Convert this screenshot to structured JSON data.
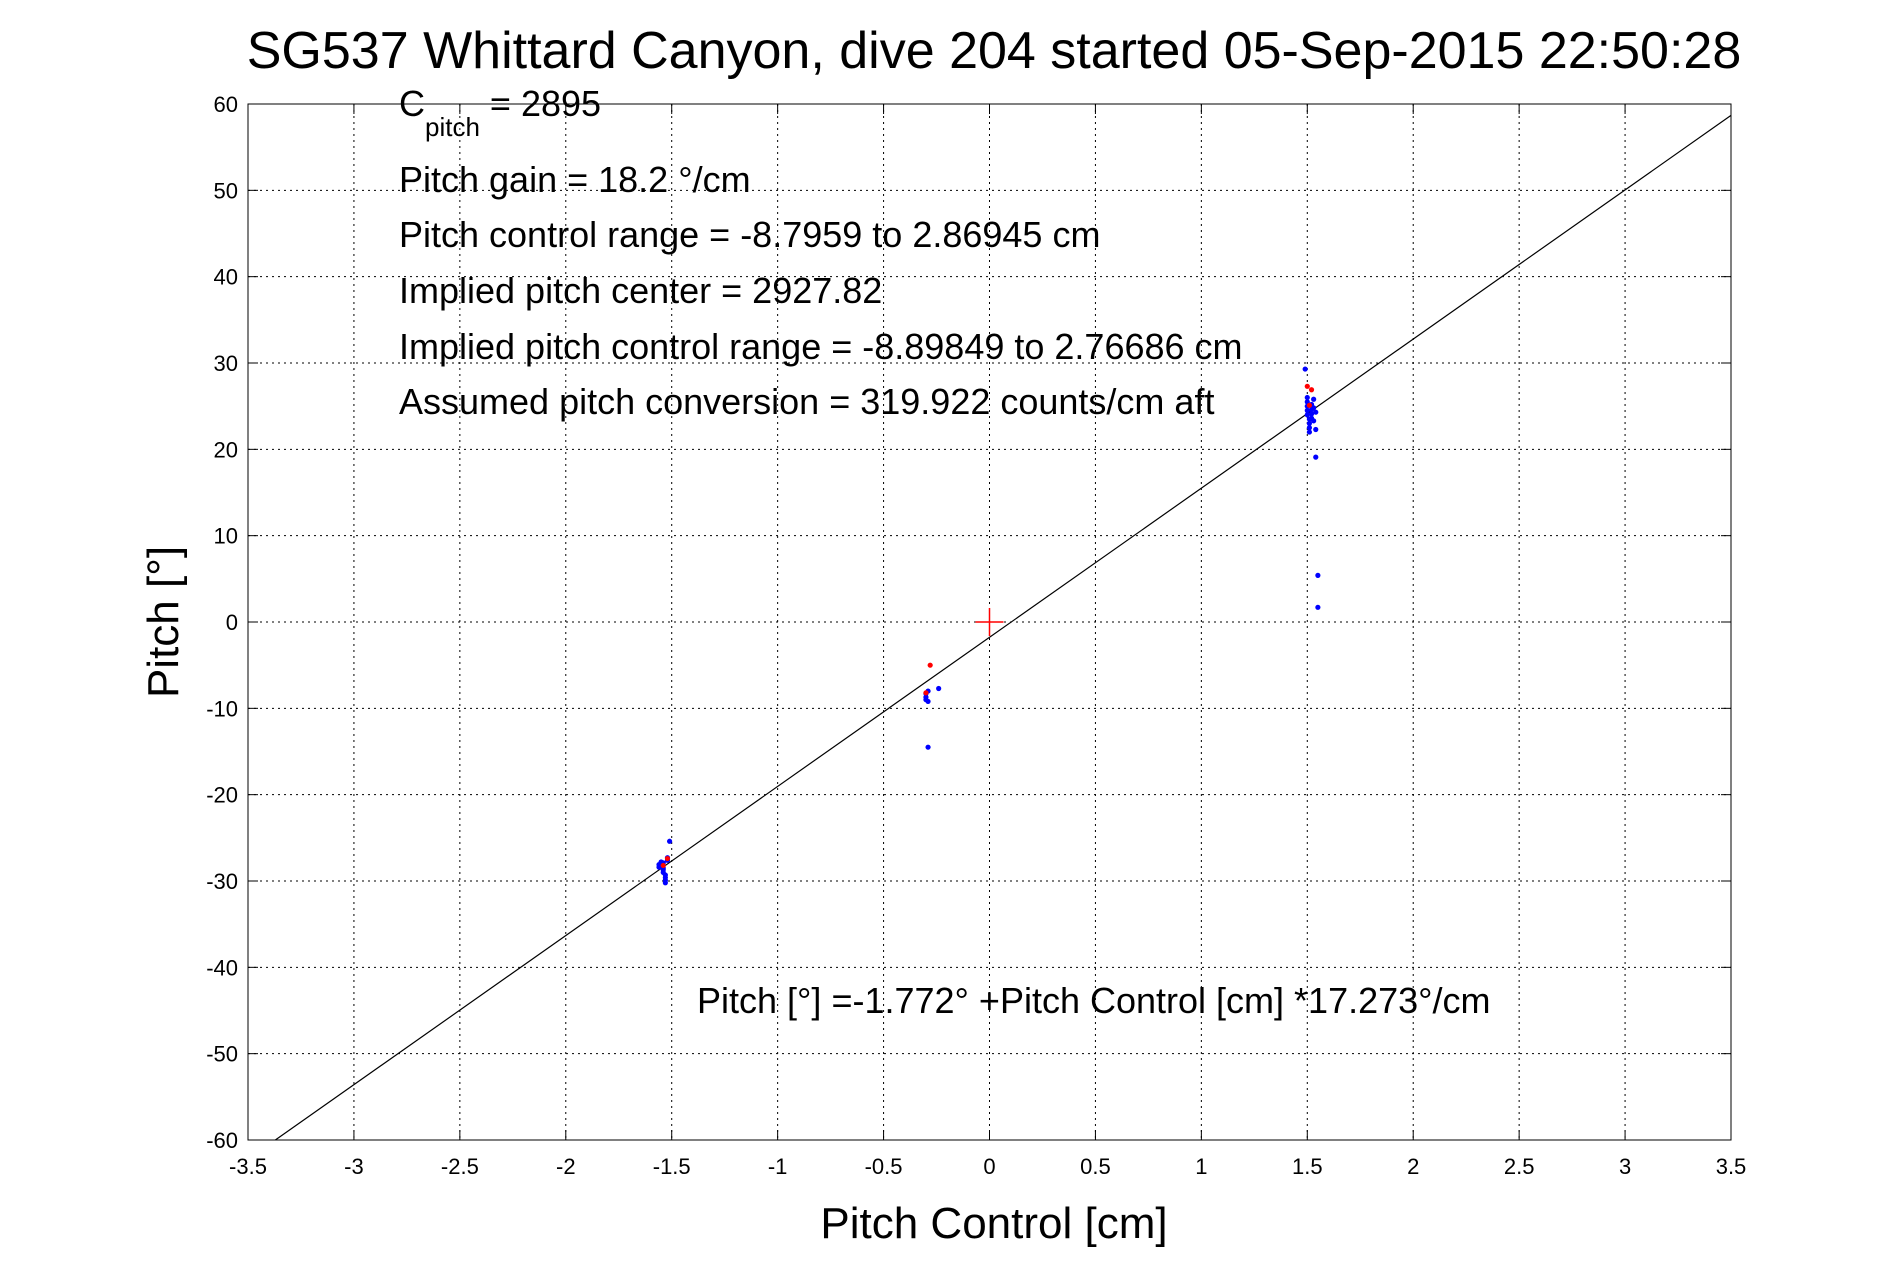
{
  "chart_data": {
    "type": "scatter",
    "title": "SG537 Whittard Canyon, dive 204 started 05-Sep-2015 22:50:28",
    "xlabel": "Pitch Control [cm]",
    "ylabel": "Pitch [°]",
    "xlim": [
      -3.5,
      3.5
    ],
    "ylim": [
      -60,
      60
    ],
    "xticks": [
      -3.5,
      -3,
      -2.5,
      -2,
      -1.5,
      -1,
      -0.5,
      0,
      0.5,
      1,
      1.5,
      2,
      2.5,
      3,
      3.5
    ],
    "yticks": [
      -60,
      -50,
      -40,
      -30,
      -20,
      -10,
      0,
      10,
      20,
      30,
      40,
      50,
      60
    ],
    "grid": true,
    "annotations": {
      "cpitch_prefix": "C",
      "cpitch_sub": "pitch",
      "cpitch_value": " = 2895",
      "pitch_gain": "Pitch gain = 18.2 °/cm",
      "pitch_control_range": "Pitch control range = -8.7959 to 2.86945 cm",
      "implied_pitch_center": "Implied pitch center = 2927.82",
      "implied_pitch_control_range": "Implied pitch control range = -8.89849 to 2.76686 cm",
      "assumed_pitch_conversion": "Assumed pitch conversion = 319.922 counts/cm aft",
      "fit_equation": "Pitch [°] =-1.772° +Pitch Control [cm] *17.273°/cm"
    },
    "fit_line": {
      "intercept": -1.772,
      "slope": 17.273,
      "color": "#000000"
    },
    "center_marker": {
      "x": 0,
      "y": 0,
      "color": "#ff0000"
    },
    "series": [
      {
        "color": "#0000ff",
        "points": [
          [
            -1.55,
            -27.8
          ],
          [
            -1.55,
            -28.0
          ],
          [
            -1.55,
            -28.3
          ],
          [
            -1.54,
            -28.5
          ],
          [
            -1.54,
            -28.7
          ],
          [
            -1.54,
            -29.0
          ],
          [
            -1.53,
            -29.3
          ],
          [
            -1.53,
            -29.6
          ],
          [
            -1.53,
            -29.9
          ],
          [
            -1.53,
            -30.2
          ],
          [
            -1.56,
            -28.1
          ],
          [
            -1.56,
            -28.4
          ],
          [
            -1.52,
            -27.6
          ],
          [
            -1.52,
            -27.3
          ],
          [
            -1.54,
            -27.9
          ],
          [
            -1.51,
            -25.4
          ],
          [
            -0.3,
            -8.3
          ],
          [
            -0.3,
            -8.7
          ],
          [
            -0.3,
            -9.0
          ],
          [
            -0.29,
            -8.0
          ],
          [
            -0.29,
            -9.2
          ],
          [
            -0.24,
            -7.7
          ],
          [
            -0.29,
            -14.5
          ],
          [
            1.49,
            29.3
          ],
          [
            1.5,
            26.0
          ],
          [
            1.5,
            25.5
          ],
          [
            1.5,
            25.0
          ],
          [
            1.5,
            24.5
          ],
          [
            1.5,
            24.0
          ],
          [
            1.51,
            23.5
          ],
          [
            1.51,
            23.0
          ],
          [
            1.51,
            22.5
          ],
          [
            1.51,
            22.0
          ],
          [
            1.52,
            25.2
          ],
          [
            1.52,
            24.6
          ],
          [
            1.52,
            24.1
          ],
          [
            1.52,
            23.6
          ],
          [
            1.53,
            25.8
          ],
          [
            1.53,
            24.8
          ],
          [
            1.53,
            23.3
          ],
          [
            1.54,
            24.3
          ],
          [
            1.54,
            22.3
          ],
          [
            1.54,
            19.1
          ],
          [
            1.55,
            5.4
          ],
          [
            1.55,
            1.7
          ]
        ]
      },
      {
        "color": "#ff0000",
        "points": [
          [
            -1.52,
            -27.4
          ],
          [
            -1.54,
            -28.2
          ],
          [
            -0.28,
            -5.0
          ],
          [
            -0.3,
            -8.2
          ],
          [
            1.5,
            27.3
          ],
          [
            1.52,
            26.9
          ],
          [
            1.51,
            25.1
          ]
        ]
      }
    ]
  }
}
